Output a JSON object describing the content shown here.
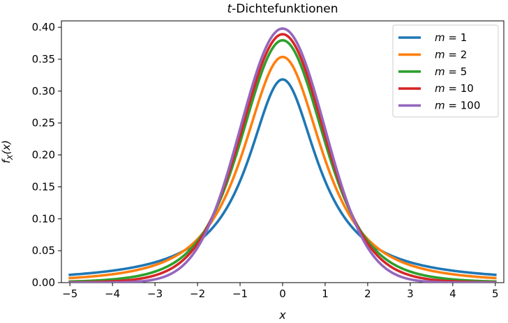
{
  "chart_data": {
    "type": "line",
    "title_var": "t",
    "title_rest": "-Dichtefunktionen",
    "xlabel": "x",
    "ylabel_main": "f",
    "ylabel_sub": "X",
    "ylabel_arg": "(x)",
    "xlim": [
      -5.2,
      5.2
    ],
    "ylim": [
      0,
      0.41
    ],
    "xticks": [
      -5,
      -4,
      -3,
      -2,
      -1,
      0,
      1,
      2,
      3,
      4,
      5
    ],
    "xtick_labels": [
      "−5",
      "−4",
      "−3",
      "−2",
      "−1",
      "0",
      "1",
      "2",
      "3",
      "4",
      "5"
    ],
    "yticks": [
      0,
      0.05,
      0.1,
      0.15,
      0.2,
      0.25,
      0.3,
      0.35,
      0.4
    ],
    "ytick_labels": [
      "0.00",
      "0.05",
      "0.10",
      "0.15",
      "0.20",
      "0.25",
      "0.30",
      "0.35",
      "0.40"
    ],
    "grid": false,
    "legend_placement": "top-right",
    "x": [
      -5,
      -4.5,
      -4,
      -3.5,
      -3,
      -2.5,
      -2,
      -1.5,
      -1,
      -0.5,
      0,
      0.5,
      1,
      1.5,
      2,
      2.5,
      3,
      3.5,
      4,
      4.5,
      5
    ],
    "series": [
      {
        "legend_var": "m",
        "legend_eq": " = ",
        "legend_num": "1",
        "color": "#1f77b4",
        "values": [
          0.0122,
          0.0149,
          0.0187,
          0.0241,
          0.0318,
          0.0439,
          0.0637,
          0.0979,
          0.1592,
          0.2546,
          0.3183,
          0.2546,
          0.1592,
          0.0979,
          0.0637,
          0.0439,
          0.0318,
          0.0241,
          0.0187,
          0.0149,
          0.0122
        ]
      },
      {
        "legend_var": "m",
        "legend_eq": " = ",
        "legend_num": "2",
        "color": "#ff7f0e",
        "values": [
          0.0071,
          0.0092,
          0.0131,
          0.0187,
          0.0274,
          0.0422,
          0.068,
          0.114,
          0.1925,
          0.2962,
          0.3536,
          0.2962,
          0.1925,
          0.114,
          0.068,
          0.0422,
          0.0274,
          0.0187,
          0.0131,
          0.0092,
          0.0071
        ]
      },
      {
        "legend_var": "m",
        "legend_eq": " = ",
        "legend_num": "5",
        "color": "#2ca02c",
        "values": [
          0.0018,
          0.0029,
          0.0051,
          0.009,
          0.0173,
          0.0329,
          0.0651,
          0.1245,
          0.2197,
          0.3279,
          0.3796,
          0.3279,
          0.2197,
          0.1245,
          0.0651,
          0.0329,
          0.0173,
          0.009,
          0.0051,
          0.0029,
          0.0018
        ]
      },
      {
        "legend_var": "m",
        "legend_eq": " = ",
        "legend_num": "10",
        "color": "#d62728",
        "values": [
          0.0004,
          0.0009,
          0.002,
          0.0049,
          0.0114,
          0.0262,
          0.0611,
          0.1267,
          0.2304,
          0.3402,
          0.3891,
          0.3402,
          0.2304,
          0.1267,
          0.0611,
          0.0262,
          0.0114,
          0.0049,
          0.002,
          0.0009,
          0.0004
        ]
      },
      {
        "legend_var": "m",
        "legend_eq": " = ",
        "legend_num": "100",
        "color": "#9467bd",
        "values": [
          0.0,
          0.0,
          0.0002,
          0.0011,
          0.0052,
          0.0189,
          0.0559,
          0.129,
          0.241,
          0.3507,
          0.3979,
          0.3507,
          0.241,
          0.129,
          0.0559,
          0.0189,
          0.0052,
          0.0011,
          0.0002,
          0.0,
          0.0
        ]
      }
    ]
  }
}
